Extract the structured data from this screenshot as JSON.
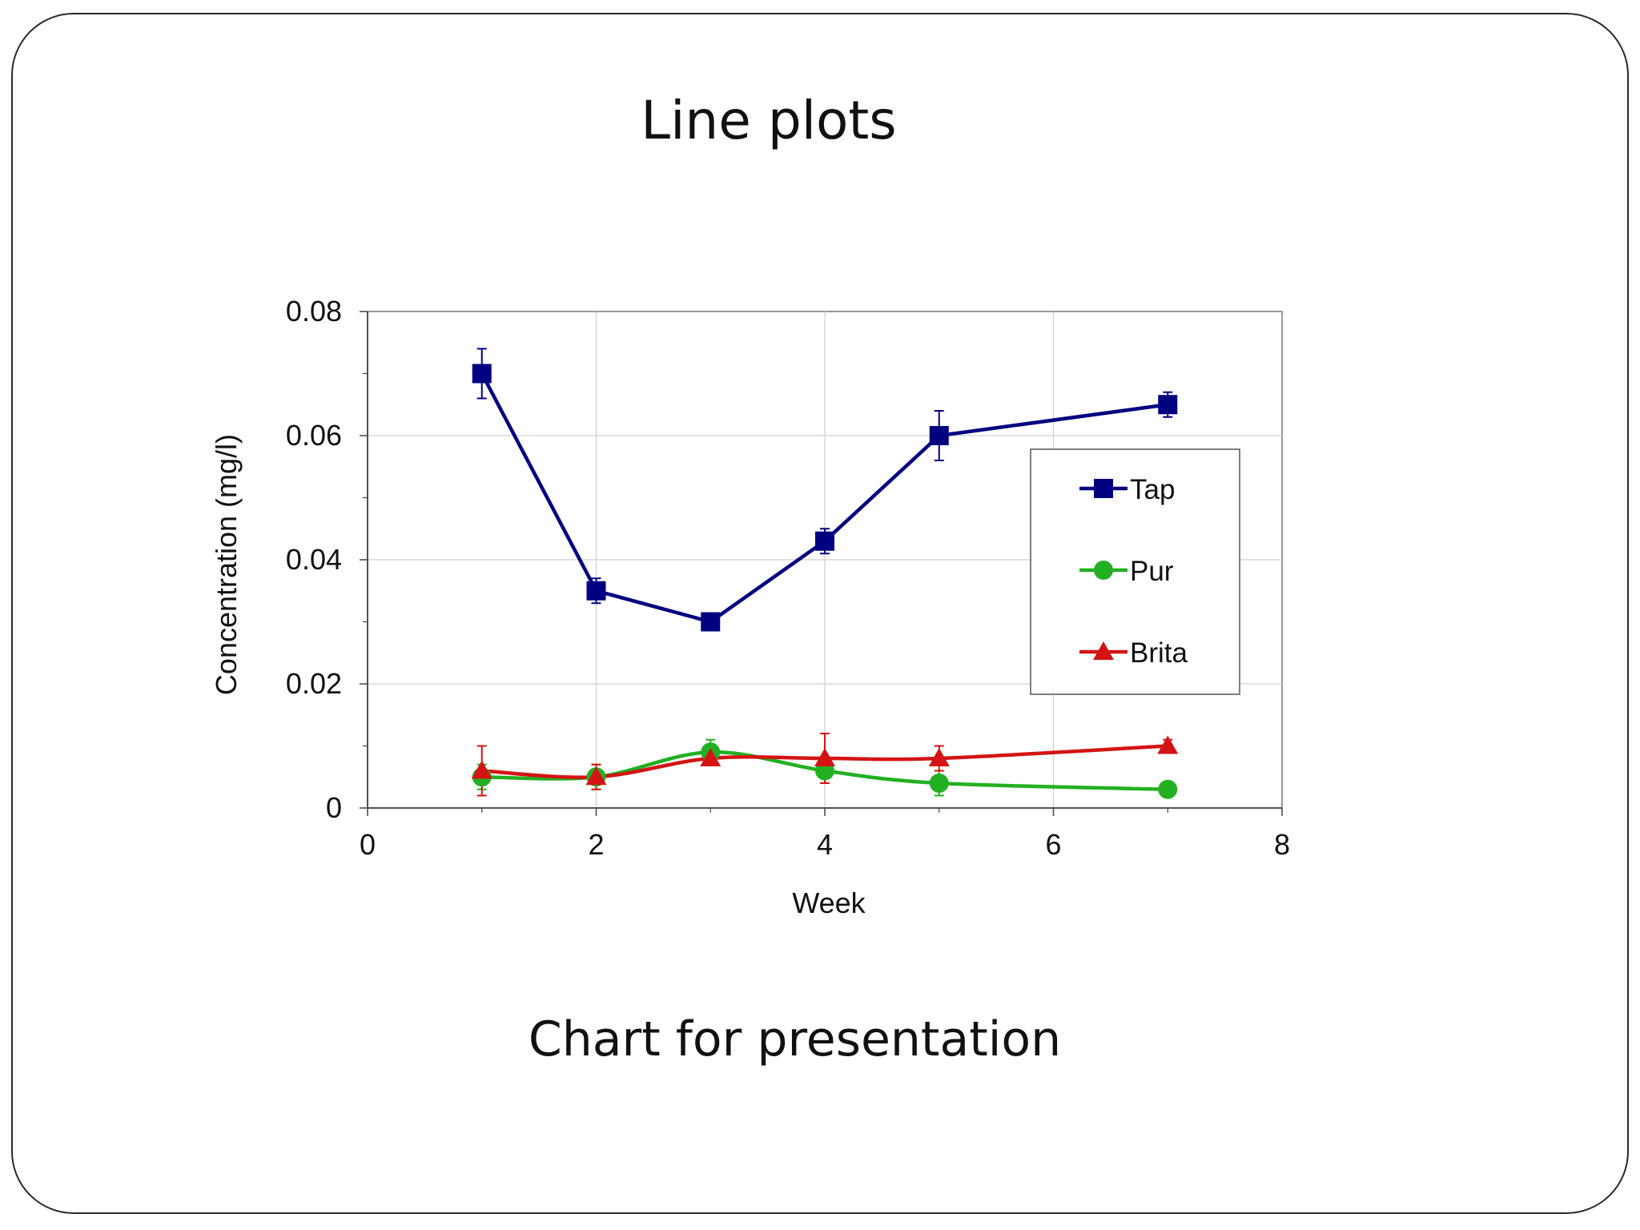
{
  "slide": {
    "title": "Line plots",
    "caption": "Chart for presentation"
  },
  "chart_data": {
    "type": "line",
    "xlabel": "Week",
    "ylabel": "Concentration (mg/l)",
    "xlim": [
      0,
      8
    ],
    "ylim": [
      0,
      0.08
    ],
    "xticks": [
      "0",
      "2",
      "4",
      "6",
      "8"
    ],
    "yticks": [
      "0",
      "0.02",
      "0.04",
      "0.06",
      "0.08"
    ],
    "grid": true,
    "legend_position": "right",
    "series": [
      {
        "name": "Tap",
        "color": "#000080",
        "marker": "square",
        "smooth": false,
        "x": [
          1,
          2,
          3,
          4,
          5,
          7
        ],
        "y": [
          0.07,
          0.035,
          0.03,
          0.043,
          0.06,
          0.065
        ],
        "error": [
          0.004,
          0.002,
          0.0,
          0.002,
          0.004,
          0.002
        ]
      },
      {
        "name": "Pur",
        "color": "#22B022",
        "marker": "circle",
        "smooth": true,
        "x": [
          1,
          2,
          3,
          4,
          5,
          7
        ],
        "y": [
          0.005,
          0.005,
          0.009,
          0.006,
          0.004,
          0.003
        ],
        "error": [
          0.002,
          0.002,
          0.002,
          0.002,
          0.002,
          0.0
        ]
      },
      {
        "name": "Brita",
        "color": "#D41414",
        "marker": "triangle",
        "smooth": true,
        "x": [
          1,
          2,
          3,
          4,
          5,
          7
        ],
        "y": [
          0.006,
          0.005,
          0.008,
          0.008,
          0.008,
          0.01
        ],
        "error": [
          0.004,
          0.002,
          0.0,
          0.004,
          0.002,
          0.001
        ]
      }
    ]
  }
}
